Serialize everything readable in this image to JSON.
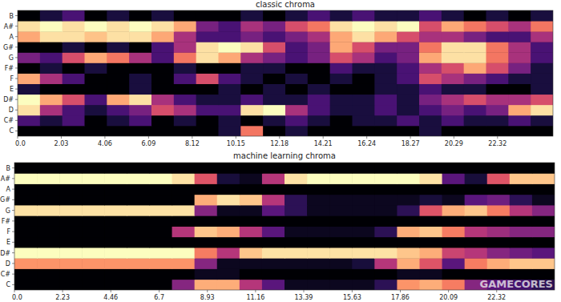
{
  "chart_data": [
    {
      "type": "heatmap",
      "title": "classic chroma",
      "y": [
        "C",
        "C#",
        "D",
        "D#",
        "E",
        "F",
        "F#",
        "G",
        "G#",
        "A",
        "A#",
        "B"
      ],
      "xlim": [
        0,
        24.9
      ],
      "xticks": [
        {
          "value": 0,
          "label": "0.0"
        },
        2.03,
        4.06,
        6.09,
        8.12,
        10.15,
        12.18,
        14.21,
        16.24,
        18.27,
        20.29,
        22.32
      ],
      "cells": [
        [
          0.1,
          0.1,
          0.1,
          0.1,
          0.1,
          0.1,
          0.1,
          0.1,
          0.1,
          0.2,
          0.7,
          0.1,
          0.2,
          0.1,
          0.1,
          0.1,
          0.1,
          0.1,
          0.2,
          0.1,
          0.1,
          0.1,
          0.1,
          0.1
        ],
        [
          0.3,
          0.2,
          0.3,
          0.1,
          0.2,
          0.3,
          0.1,
          0.2,
          0.1,
          0.2,
          0.1,
          0.2,
          0.3,
          0.2,
          0.1,
          0.2,
          0.2,
          0.3,
          0.2,
          0.3,
          0.2,
          0.2,
          0.3,
          0.2
        ],
        [
          0.9,
          0.5,
          0.3,
          0.2,
          0.3,
          0.4,
          0.6,
          0.5,
          0.3,
          0.3,
          0.9,
          0.95,
          0.5,
          0.3,
          0.2,
          0.2,
          0.3,
          0.2,
          0.3,
          0.4,
          0.3,
          0.4,
          0.8,
          0.9
        ],
        [
          0.95,
          0.8,
          0.6,
          0.3,
          0.8,
          0.9,
          0.5,
          0.3,
          0.2,
          0.2,
          0.3,
          0.2,
          0.2,
          0.3,
          0.2,
          0.2,
          0.3,
          0.2,
          0.4,
          0.5,
          0.6,
          0.5,
          0.5,
          0.6
        ],
        [
          0.2,
          0.1,
          0.1,
          0.1,
          0.1,
          0.2,
          0.1,
          0.1,
          0.1,
          0.2,
          0.1,
          0.2,
          0.1,
          0.2,
          0.1,
          0.1,
          0.2,
          0.2,
          0.3,
          0.2,
          0.2,
          0.1,
          0.1,
          0.2
        ],
        [
          0.8,
          0.5,
          0.3,
          0.1,
          0.1,
          0.2,
          0.1,
          0.3,
          0.6,
          0.3,
          0.2,
          0.1,
          0.2,
          0.1,
          0.2,
          0.1,
          0.2,
          0.3,
          0.6,
          0.5,
          0.4,
          0.3,
          0.2,
          0.2
        ],
        [
          0.1,
          0.2,
          0.1,
          0.2,
          0.1,
          0.1,
          0.1,
          0.2,
          0.1,
          0.1,
          0.2,
          0.2,
          0.1,
          0.1,
          0.3,
          0.2,
          0.2,
          0.3,
          0.5,
          0.6,
          0.8,
          0.6,
          0.4,
          0.2
        ],
        [
          0.4,
          0.3,
          0.6,
          0.8,
          0.7,
          0.5,
          0.3,
          0.7,
          0.9,
          0.8,
          0.5,
          0.4,
          0.3,
          0.4,
          0.6,
          0.5,
          0.3,
          0.4,
          0.8,
          0.9,
          0.9,
          0.7,
          0.5,
          0.3
        ],
        [
          0.1,
          0.1,
          0.2,
          0.1,
          0.2,
          0.1,
          0.3,
          0.5,
          0.9,
          0.95,
          0.9,
          0.6,
          0.3,
          0.4,
          0.8,
          0.6,
          0.4,
          0.4,
          0.7,
          0.9,
          0.9,
          0.7,
          0.5,
          0.3
        ],
        [
          0.8,
          0.9,
          0.9,
          0.85,
          0.9,
          0.9,
          0.8,
          0.5,
          0.3,
          0.3,
          0.4,
          0.3,
          0.4,
          0.5,
          0.8,
          0.9,
          0.8,
          0.6,
          0.5,
          0.5,
          0.4,
          0.3,
          0.3,
          0.5
        ],
        [
          0.9,
          0.95,
          0.9,
          0.95,
          0.9,
          0.95,
          0.9,
          0.8,
          0.4,
          0.3,
          0.5,
          0.4,
          0.6,
          0.7,
          0.9,
          0.95,
          0.9,
          0.95,
          0.6,
          0.8,
          0.7,
          0.6,
          0.5,
          0.7
        ],
        [
          0.1,
          0.2,
          0.3,
          0.1,
          0.2,
          0.1,
          0.2,
          0.1,
          0.1,
          0.1,
          0.2,
          0.1,
          0.2,
          0.3,
          0.2,
          0.3,
          0.2,
          0.2,
          0.3,
          0.2,
          0.1,
          0.2,
          0.1,
          0.2
        ]
      ]
    },
    {
      "type": "heatmap",
      "title": "machine learning chroma",
      "y": [
        "C",
        "C#",
        "D",
        "D#",
        "E",
        "F",
        "F#",
        "G",
        "G#",
        "A",
        "A#",
        "B"
      ],
      "xlim": [
        0,
        25.0
      ],
      "xticks": [
        {
          "value": 0,
          "label": "0.0"
        },
        2.23,
        4.46,
        6.7,
        8.93,
        11.16,
        13.39,
        15.63,
        17.86,
        20.09,
        22.32
      ],
      "cells": [
        [
          0.05,
          0.05,
          0.05,
          0.05,
          0.05,
          0.05,
          0.05,
          0.4,
          0.8,
          0.8,
          0.5,
          0.3,
          0.1,
          0.1,
          0.1,
          0.1,
          0.2,
          0.75,
          0.8,
          0.7,
          0.4,
          0.3,
          0.25,
          0.2
        ],
        [
          0.05,
          0.05,
          0.05,
          0.05,
          0.05,
          0.05,
          0.05,
          0.05,
          0.1,
          0.1,
          0.05,
          0.05,
          0.05,
          0.05,
          0.05,
          0.05,
          0.05,
          0.1,
          0.1,
          0.05,
          0.05,
          0.05,
          0.05,
          0.05
        ],
        [
          0.75,
          0.75,
          0.75,
          0.75,
          0.75,
          0.75,
          0.75,
          0.75,
          0.4,
          0.1,
          0.1,
          0.1,
          0.1,
          0.1,
          0.1,
          0.15,
          0.5,
          0.8,
          0.6,
          0.3,
          0.7,
          0.8,
          0.85,
          0.85
        ],
        [
          0.95,
          0.95,
          0.95,
          0.95,
          0.95,
          0.95,
          0.95,
          0.95,
          0.7,
          0.5,
          0.85,
          0.9,
          0.9,
          0.9,
          0.9,
          0.9,
          0.9,
          0.85,
          0.8,
          0.55,
          0.5,
          0.4,
          0.35,
          0.3
        ],
        [
          0.05,
          0.05,
          0.05,
          0.05,
          0.05,
          0.05,
          0.05,
          0.05,
          0.05,
          0.05,
          0.05,
          0.05,
          0.05,
          0.05,
          0.05,
          0.05,
          0.05,
          0.05,
          0.05,
          0.05,
          0.05,
          0.05,
          0.05,
          0.05
        ],
        [
          0.05,
          0.05,
          0.05,
          0.05,
          0.05,
          0.05,
          0.05,
          0.5,
          0.85,
          0.8,
          0.5,
          0.3,
          0.1,
          0.1,
          0.1,
          0.1,
          0.2,
          0.8,
          0.85,
          0.7,
          0.5,
          0.45,
          0.4,
          0.4
        ],
        [
          0.05,
          0.05,
          0.05,
          0.05,
          0.05,
          0.05,
          0.05,
          0.05,
          0.05,
          0.05,
          0.05,
          0.05,
          0.05,
          0.05,
          0.05,
          0.05,
          0.05,
          0.05,
          0.05,
          0.05,
          0.05,
          0.05,
          0.05,
          0.05
        ],
        [
          0.9,
          0.9,
          0.9,
          0.9,
          0.9,
          0.9,
          0.9,
          0.9,
          0.4,
          0.1,
          0.1,
          0.3,
          0.2,
          0.1,
          0.1,
          0.1,
          0.1,
          0.2,
          0.6,
          0.8,
          0.85,
          0.7,
          0.5,
          0.4
        ],
        [
          0.05,
          0.05,
          0.05,
          0.05,
          0.05,
          0.05,
          0.05,
          0.05,
          0.8,
          0.9,
          0.85,
          0.5,
          0.2,
          0.1,
          0.1,
          0.1,
          0.1,
          0.1,
          0.15,
          0.1,
          0.3,
          0.35,
          0.2,
          0.1
        ],
        [
          0.05,
          0.05,
          0.05,
          0.05,
          0.05,
          0.05,
          0.05,
          0.05,
          0.05,
          0.05,
          0.05,
          0.05,
          0.05,
          0.05,
          0.05,
          0.05,
          0.05,
          0.05,
          0.05,
          0.05,
          0.05,
          0.05,
          0.05,
          0.05
        ],
        [
          0.95,
          0.95,
          0.95,
          0.95,
          0.95,
          0.95,
          0.95,
          0.9,
          0.6,
          0.15,
          0.1,
          0.5,
          0.9,
          0.95,
          0.95,
          0.95,
          0.95,
          0.95,
          0.9,
          0.3,
          0.15,
          0.6,
          0.85,
          0.85
        ],
        [
          0.05,
          0.05,
          0.05,
          0.05,
          0.05,
          0.05,
          0.05,
          0.05,
          0.05,
          0.05,
          0.05,
          0.05,
          0.05,
          0.05,
          0.05,
          0.05,
          0.05,
          0.05,
          0.05,
          0.05,
          0.05,
          0.05,
          0.05,
          0.05
        ]
      ]
    }
  ],
  "watermark": "GAMECORES"
}
